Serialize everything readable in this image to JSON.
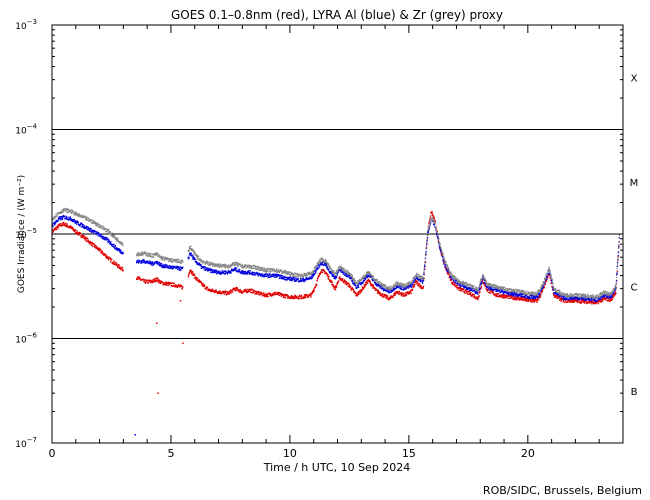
{
  "chart_data": {
    "type": "line",
    "title": "GOES 0.1–0.8nm (red), LYRA Al (blue) & Zr (grey) proxy",
    "xlabel": "Time / h UTC, 10 Sep 2024",
    "ylabel": "GOES Irradiance / (W m⁻²)",
    "xlim": [
      0,
      24
    ],
    "ylim": [
      1e-07,
      0.001
    ],
    "yscale": "log",
    "x_ticks": [
      0,
      5,
      10,
      15,
      20
    ],
    "y_ticks": [
      {
        "value": 1e-07,
        "base": "10",
        "exp": "−7"
      },
      {
        "value": 1e-06,
        "base": "10",
        "exp": "−6"
      },
      {
        "value": 1e-05,
        "base": "10",
        "exp": "−5"
      },
      {
        "value": 0.0001,
        "base": "10",
        "exp": "−4"
      },
      {
        "value": 0.001,
        "base": "10",
        "exp": "−3"
      }
    ],
    "flare_class_lines": [
      1e-06,
      1e-05,
      0.0001
    ],
    "flare_classes": [
      {
        "label": "B",
        "value": 3.16e-07
      },
      {
        "label": "C",
        "value": 3.16e-06
      },
      {
        "label": "M",
        "value": 3.16e-05
      },
      {
        "label": "X",
        "value": 0.000316
      }
    ],
    "credit": "ROB/SIDC, Brussels, Belgium",
    "series": [
      {
        "name": "GOES 0.1–0.8nm",
        "color": "#e00000",
        "points": [
          [
            0.0,
            1.05e-05
          ],
          [
            0.3,
            1.2e-05
          ],
          [
            0.5,
            1.25e-05
          ],
          [
            0.8,
            1.15e-05
          ],
          [
            1.0,
            1.05e-05
          ],
          [
            1.3,
            9.5e-06
          ],
          [
            1.6,
            8.3e-06
          ],
          [
            2.0,
            7e-06
          ],
          [
            2.4,
            5.8e-06
          ],
          [
            2.8,
            4.9e-06
          ],
          [
            3.2,
            4.2e-06
          ],
          [
            3.5,
            3.9e-06
          ],
          [
            3.9,
            3.5e-06
          ],
          [
            4.2,
            3.5e-06
          ],
          [
            4.4,
            3.7e-06
          ],
          [
            4.6,
            3.4e-06
          ],
          [
            5.0,
            3.3e-06
          ],
          [
            5.3,
            3.2e-06
          ],
          [
            5.6,
            3e-06
          ],
          [
            5.8,
            4.6e-06
          ],
          [
            6.0,
            3.9e-06
          ],
          [
            6.3,
            3.3e-06
          ],
          [
            6.6,
            2.9e-06
          ],
          [
            7.0,
            2.8e-06
          ],
          [
            7.4,
            2.7e-06
          ],
          [
            7.7,
            3e-06
          ],
          [
            8.0,
            2.8e-06
          ],
          [
            8.3,
            2.9e-06
          ],
          [
            8.7,
            2.7e-06
          ],
          [
            9.0,
            2.6e-06
          ],
          [
            9.4,
            2.7e-06
          ],
          [
            9.8,
            2.55e-06
          ],
          [
            10.1,
            2.5e-06
          ],
          [
            10.5,
            2.5e-06
          ],
          [
            10.9,
            2.6e-06
          ],
          [
            11.1,
            3.3e-06
          ],
          [
            11.3,
            4.5e-06
          ],
          [
            11.5,
            4.3e-06
          ],
          [
            11.7,
            3.6e-06
          ],
          [
            11.9,
            3e-06
          ],
          [
            12.1,
            3.8e-06
          ],
          [
            12.3,
            3.5e-06
          ],
          [
            12.5,
            3.2e-06
          ],
          [
            12.8,
            2.6e-06
          ],
          [
            13.0,
            2.9e-06
          ],
          [
            13.3,
            3.6e-06
          ],
          [
            13.6,
            2.9e-06
          ],
          [
            13.9,
            2.6e-06
          ],
          [
            14.2,
            2.4e-06
          ],
          [
            14.5,
            2.8e-06
          ],
          [
            14.8,
            2.6e-06
          ],
          [
            15.1,
            2.8e-06
          ],
          [
            15.3,
            3.5e-06
          ],
          [
            15.6,
            3e-06
          ],
          [
            15.8,
            1.1e-05
          ],
          [
            15.95,
            1.65e-05
          ],
          [
            16.1,
            1.3e-05
          ],
          [
            16.3,
            7.5e-06
          ],
          [
            16.5,
            5e-06
          ],
          [
            16.8,
            3.5e-06
          ],
          [
            17.1,
            3e-06
          ],
          [
            17.4,
            2.8e-06
          ],
          [
            17.7,
            2.6e-06
          ],
          [
            17.9,
            2.4e-06
          ],
          [
            18.1,
            3.6e-06
          ],
          [
            18.3,
            2.9e-06
          ],
          [
            18.7,
            2.6e-06
          ],
          [
            19.2,
            2.5e-06
          ],
          [
            19.7,
            2.4e-06
          ],
          [
            20.1,
            2.3e-06
          ],
          [
            20.4,
            2.3e-06
          ],
          [
            20.6,
            2.8e-06
          ],
          [
            20.9,
            4.2e-06
          ],
          [
            21.1,
            2.6e-06
          ],
          [
            21.5,
            2.3e-06
          ],
          [
            22.0,
            2.3e-06
          ],
          [
            22.5,
            2.25e-06
          ],
          [
            22.9,
            2.2e-06
          ],
          [
            23.2,
            2.4e-06
          ],
          [
            23.5,
            2.35e-06
          ],
          [
            23.7,
            2.8e-06
          ],
          [
            23.85,
            9e-06
          ]
        ]
      },
      {
        "name": "LYRA Al",
        "color": "#0000dd",
        "points": [
          [
            0.0,
            1.2e-05
          ],
          [
            0.3,
            1.4e-05
          ],
          [
            0.5,
            1.45e-05
          ],
          [
            0.8,
            1.4e-05
          ],
          [
            1.0,
            1.3e-05
          ],
          [
            1.3,
            1.2e-05
          ],
          [
            1.6,
            1.1e-05
          ],
          [
            2.0,
            9.8e-06
          ],
          [
            2.4,
            8.5e-06
          ],
          [
            2.7,
            7.3e-06
          ],
          [
            3.0,
            6.6e-06
          ],
          [
            3.5,
            5.4e-06
          ],
          [
            3.9,
            5.5e-06
          ],
          [
            4.2,
            5.2e-06
          ],
          [
            4.4,
            5.4e-06
          ],
          [
            4.6,
            5e-06
          ],
          [
            5.0,
            4.8e-06
          ],
          [
            5.3,
            4.7e-06
          ],
          [
            5.6,
            4.6e-06
          ],
          [
            5.8,
            6.6e-06
          ],
          [
            6.0,
            5.6e-06
          ],
          [
            6.3,
            4.8e-06
          ],
          [
            6.6,
            4.5e-06
          ],
          [
            7.0,
            4.3e-06
          ],
          [
            7.4,
            4.3e-06
          ],
          [
            7.7,
            4.6e-06
          ],
          [
            8.0,
            4.3e-06
          ],
          [
            8.3,
            4.3e-06
          ],
          [
            8.7,
            4.1e-06
          ],
          [
            9.0,
            4e-06
          ],
          [
            9.4,
            4e-06
          ],
          [
            9.8,
            3.8e-06
          ],
          [
            10.1,
            3.7e-06
          ],
          [
            10.5,
            3.6e-06
          ],
          [
            10.9,
            3.8e-06
          ],
          [
            11.1,
            4.5e-06
          ],
          [
            11.3,
            5.3e-06
          ],
          [
            11.5,
            5.1e-06
          ],
          [
            11.7,
            4.3e-06
          ],
          [
            11.9,
            3.8e-06
          ],
          [
            12.1,
            4.6e-06
          ],
          [
            12.3,
            4.2e-06
          ],
          [
            12.5,
            3.9e-06
          ],
          [
            12.8,
            3.1e-06
          ],
          [
            13.0,
            3.4e-06
          ],
          [
            13.3,
            4.1e-06
          ],
          [
            13.6,
            3.4e-06
          ],
          [
            13.9,
            3e-06
          ],
          [
            14.2,
            2.8e-06
          ],
          [
            14.5,
            3.2e-06
          ],
          [
            14.8,
            3e-06
          ],
          [
            15.1,
            3.2e-06
          ],
          [
            15.3,
            3.9e-06
          ],
          [
            15.6,
            3.5e-06
          ],
          [
            15.8,
            1.05e-05
          ],
          [
            15.95,
            1.4e-05
          ],
          [
            16.1,
            1.2e-05
          ],
          [
            16.3,
            7.5e-06
          ],
          [
            16.5,
            5.2e-06
          ],
          [
            16.8,
            3.8e-06
          ],
          [
            17.1,
            3.3e-06
          ],
          [
            17.4,
            3.1e-06
          ],
          [
            17.7,
            2.9e-06
          ],
          [
            17.9,
            2.7e-06
          ],
          [
            18.1,
            3.8e-06
          ],
          [
            18.3,
            3.1e-06
          ],
          [
            18.7,
            2.9e-06
          ],
          [
            19.2,
            2.7e-06
          ],
          [
            19.7,
            2.6e-06
          ],
          [
            20.1,
            2.5e-06
          ],
          [
            20.4,
            2.5e-06
          ],
          [
            20.6,
            3e-06
          ],
          [
            20.9,
            4.5e-06
          ],
          [
            21.1,
            2.8e-06
          ],
          [
            21.5,
            2.45e-06
          ],
          [
            22.0,
            2.45e-06
          ],
          [
            22.5,
            2.4e-06
          ],
          [
            22.9,
            2.35e-06
          ],
          [
            23.2,
            2.6e-06
          ],
          [
            23.5,
            2.5e-06
          ],
          [
            23.7,
            3e-06
          ],
          [
            23.85,
            9.5e-06
          ]
        ]
      },
      {
        "name": "LYRA Zr",
        "color": "#888888",
        "points": [
          [
            0.0,
            1.4e-05
          ],
          [
            0.3,
            1.6e-05
          ],
          [
            0.5,
            1.7e-05
          ],
          [
            0.8,
            1.65e-05
          ],
          [
            1.0,
            1.55e-05
          ],
          [
            1.3,
            1.45e-05
          ],
          [
            1.6,
            1.35e-05
          ],
          [
            2.0,
            1.2e-05
          ],
          [
            2.4,
            1.05e-05
          ],
          [
            2.7,
            9e-06
          ],
          [
            3.0,
            8e-06
          ],
          [
            3.5,
            6.4e-06
          ],
          [
            3.9,
            6.5e-06
          ],
          [
            4.2,
            6.2e-06
          ],
          [
            4.4,
            6.4e-06
          ],
          [
            4.6,
            5.9e-06
          ],
          [
            5.0,
            5.6e-06
          ],
          [
            5.3,
            5.5e-06
          ],
          [
            5.6,
            5.4e-06
          ],
          [
            5.8,
            7.6e-06
          ],
          [
            6.0,
            6.4e-06
          ],
          [
            6.3,
            5.5e-06
          ],
          [
            6.6,
            5.2e-06
          ],
          [
            7.0,
            5e-06
          ],
          [
            7.4,
            4.9e-06
          ],
          [
            7.7,
            5.2e-06
          ],
          [
            8.0,
            4.9e-06
          ],
          [
            8.3,
            4.9e-06
          ],
          [
            8.7,
            4.7e-06
          ],
          [
            9.0,
            4.5e-06
          ],
          [
            9.4,
            4.5e-06
          ],
          [
            9.8,
            4.3e-06
          ],
          [
            10.1,
            4.1e-06
          ],
          [
            10.5,
            4e-06
          ],
          [
            10.9,
            4.2e-06
          ],
          [
            11.1,
            4.9e-06
          ],
          [
            11.3,
            5.7e-06
          ],
          [
            11.5,
            5.5e-06
          ],
          [
            11.7,
            4.7e-06
          ],
          [
            11.9,
            4.1e-06
          ],
          [
            12.1,
            4.9e-06
          ],
          [
            12.3,
            4.5e-06
          ],
          [
            12.5,
            4.2e-06
          ],
          [
            12.8,
            3.4e-06
          ],
          [
            13.0,
            3.7e-06
          ],
          [
            13.3,
            4.3e-06
          ],
          [
            13.6,
            3.6e-06
          ],
          [
            13.9,
            3.2e-06
          ],
          [
            14.2,
            3e-06
          ],
          [
            14.5,
            3.4e-06
          ],
          [
            14.8,
            3.2e-06
          ],
          [
            15.1,
            3.4e-06
          ],
          [
            15.3,
            4.1e-06
          ],
          [
            15.6,
            3.7e-06
          ],
          [
            15.8,
            1.1e-05
          ],
          [
            15.95,
            1.45e-05
          ],
          [
            16.1,
            1.25e-05
          ],
          [
            16.3,
            8e-06
          ],
          [
            16.5,
            5.5e-06
          ],
          [
            16.8,
            4e-06
          ],
          [
            17.1,
            3.5e-06
          ],
          [
            17.4,
            3.3e-06
          ],
          [
            17.7,
            3.1e-06
          ],
          [
            17.9,
            2.9e-06
          ],
          [
            18.1,
            4e-06
          ],
          [
            18.3,
            3.3e-06
          ],
          [
            18.7,
            3.1e-06
          ],
          [
            19.2,
            2.9e-06
          ],
          [
            19.7,
            2.8e-06
          ],
          [
            20.1,
            2.7e-06
          ],
          [
            20.4,
            2.7e-06
          ],
          [
            20.6,
            3.2e-06
          ],
          [
            20.9,
            4.7e-06
          ],
          [
            21.1,
            3e-06
          ],
          [
            21.5,
            2.6e-06
          ],
          [
            22.0,
            2.6e-06
          ],
          [
            22.5,
            2.55e-06
          ],
          [
            22.9,
            2.5e-06
          ],
          [
            23.2,
            2.75e-06
          ],
          [
            23.5,
            2.65e-06
          ],
          [
            23.7,
            3.2e-06
          ],
          [
            23.85,
            1e-05
          ]
        ]
      }
    ],
    "gaps": [
      [
        3.0,
        3.55
      ],
      [
        5.5,
        5.72
      ]
    ],
    "outliers": [
      {
        "x": 4.4,
        "y": 1.4e-06,
        "color": "#e00000"
      },
      {
        "x": 4.45,
        "y": 3e-07,
        "color": "#e00000"
      },
      {
        "x": 5.4,
        "y": 2.3e-06,
        "color": "#e00000"
      },
      {
        "x": 5.5,
        "y": 9e-07,
        "color": "#e00000"
      },
      {
        "x": 3.5,
        "y": 1.2e-07,
        "color": "#0000dd"
      }
    ]
  }
}
